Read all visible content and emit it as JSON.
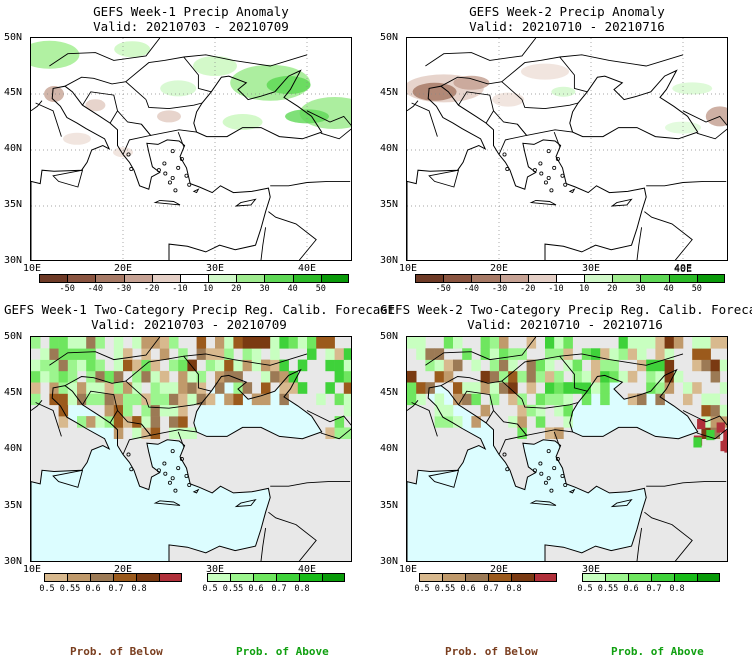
{
  "colors": {
    "below_text": "#7a3e1f",
    "above_text": "#10a010",
    "sea_prob": "#dcfdff",
    "land_gray": "#e8e8e8"
  },
  "panels": [
    {
      "line1": "GEFS Week-1 Precip Anomaly",
      "line2": "Valid: 20210703 - 20210709"
    },
    {
      "line1": "GEFS Week-2 Precip Anomaly",
      "line2": "Valid: 20210710 - 20210716"
    },
    {
      "line1": "GEFS Week-1 Two-Category Precip Reg. Calib. Forecast",
      "line2": "Valid: 20210703 - 20210709"
    },
    {
      "line1": "GEFS Week-2 Two-Category Precip Reg. Calib. Forecast",
      "line2": "Valid: 20210710 - 20210716"
    }
  ],
  "axes": {
    "lat_labels": [
      "50N",
      "45N",
      "40N",
      "35N",
      "30N"
    ],
    "lon_labels": [
      "10E",
      "20E",
      "30E",
      "40E"
    ]
  },
  "anomaly_colorbar": {
    "ticks": [
      "-50",
      "-40",
      "-30",
      "-20",
      "-10",
      "10",
      "20",
      "30",
      "40",
      "50"
    ],
    "colors": [
      "#6e3a26",
      "#8a5440",
      "#a77a66",
      "#c6a294",
      "#e4cfc6",
      "#ffffff",
      "#d0f8c8",
      "#9eeb8e",
      "#5fd856",
      "#2dbb28",
      "#0a9a0a"
    ]
  },
  "prob_colorbar": {
    "below_ticks": [
      "0.5",
      "0.55",
      "0.6",
      "0.7",
      "0.8"
    ],
    "below_colors": [
      "#d8b98e",
      "#c09a6b",
      "#9c7a55",
      "#9b5a1c",
      "#7a3a12",
      "#b0303a"
    ],
    "above_ticks": [
      "0.5",
      "0.55",
      "0.6",
      "0.7",
      "0.8"
    ],
    "above_colors": [
      "#c8ffc0",
      "#9cf58e",
      "#6fe65f",
      "#3fd23a",
      "#18bb18",
      "#089a08"
    ],
    "below_label": "Prob. of Below",
    "above_label": "Prob. of Above"
  },
  "chart_data": [
    {
      "type": "heatmap",
      "title": "GEFS Week-1 Precip Anomaly",
      "subtitle": "Valid: 20210703 - 20210709",
      "xlim": [
        10,
        45
      ],
      "ylim": [
        30,
        50
      ],
      "x_ticks": [
        "10E",
        "20E",
        "30E",
        "40E"
      ],
      "y_ticks": [
        "50N",
        "45N",
        "40N",
        "35N",
        "30N"
      ],
      "colorbar_ticks": [
        -50,
        -40,
        -30,
        -20,
        -10,
        10,
        20,
        30,
        40,
        50
      ],
      "anomaly_regions": [
        {
          "lon": 13,
          "lat": 48,
          "value": 20
        },
        {
          "lon": 36,
          "lat": 44,
          "value": 30
        },
        {
          "lon": 38,
          "lat": 45,
          "value": 40
        },
        {
          "lon": 43,
          "lat": 43,
          "value": 30
        },
        {
          "lon": 12,
          "lat": 45,
          "value": -20
        },
        {
          "lon": 25,
          "lat": 43,
          "value": -20
        }
      ]
    },
    {
      "type": "heatmap",
      "title": "GEFS Week-2 Precip Anomaly",
      "subtitle": "Valid: 20210710 - 20210716",
      "xlim": [
        10,
        45
      ],
      "ylim": [
        30,
        50
      ],
      "x_ticks": [
        "10E",
        "20E",
        "30E",
        "40E"
      ],
      "y_ticks": [
        "50N",
        "45N",
        "40N",
        "35N",
        "30N"
      ],
      "colorbar_ticks": [
        -50,
        -40,
        -30,
        -20,
        -10,
        10,
        20,
        30,
        40,
        50
      ],
      "anomaly_regions": [
        {
          "lon": 13,
          "lat": 45,
          "value": -40
        },
        {
          "lon": 17,
          "lat": 46,
          "value": -30
        },
        {
          "lon": 43,
          "lat": 43,
          "value": -20
        },
        {
          "lon": 26,
          "lat": 45,
          "value": 10
        }
      ]
    },
    {
      "type": "heatmap",
      "title": "GEFS Week-1 Two-Category Precip Reg. Calib. Forecast",
      "subtitle": "Valid: 20210703 - 20210709",
      "xlim": [
        10,
        45
      ],
      "ylim": [
        30,
        50
      ],
      "x_ticks": [
        "10E",
        "20E",
        "30E",
        "40E"
      ],
      "y_ticks": [
        "50N",
        "45N",
        "40N",
        "35N",
        "30N"
      ],
      "colorbar_ticks": [
        0.5,
        0.55,
        0.6,
        0.7,
        0.8
      ],
      "prob_regions": [
        {
          "lon": 13,
          "lat": 47,
          "category": "above",
          "prob": 0.6
        },
        {
          "lon": 30,
          "lat": 48,
          "category": "below",
          "prob": 0.7
        },
        {
          "lon": 38,
          "lat": 45,
          "category": "above",
          "prob": 0.6
        },
        {
          "lon": 15,
          "lat": 43,
          "category": "below",
          "prob": 0.6
        }
      ]
    },
    {
      "type": "heatmap",
      "title": "GEFS Week-2 Two-Category Precip Reg. Calib. Forecast",
      "subtitle": "Valid: 20210710 - 20210716",
      "xlim": [
        10,
        45
      ],
      "ylim": [
        30,
        50
      ],
      "x_ticks": [
        "10E",
        "20E",
        "30E",
        "40E"
      ],
      "y_ticks": [
        "50N",
        "45N",
        "40N",
        "35N",
        "30N"
      ],
      "colorbar_ticks": [
        0.5,
        0.55,
        0.6,
        0.7,
        0.8
      ],
      "prob_regions": [
        {
          "lon": 15,
          "lat": 45,
          "category": "below",
          "prob": 0.7
        },
        {
          "lon": 28,
          "lat": 47,
          "category": "above",
          "prob": 0.6
        },
        {
          "lon": 42,
          "lat": 42,
          "category": "below",
          "prob": 0.6
        }
      ]
    }
  ]
}
